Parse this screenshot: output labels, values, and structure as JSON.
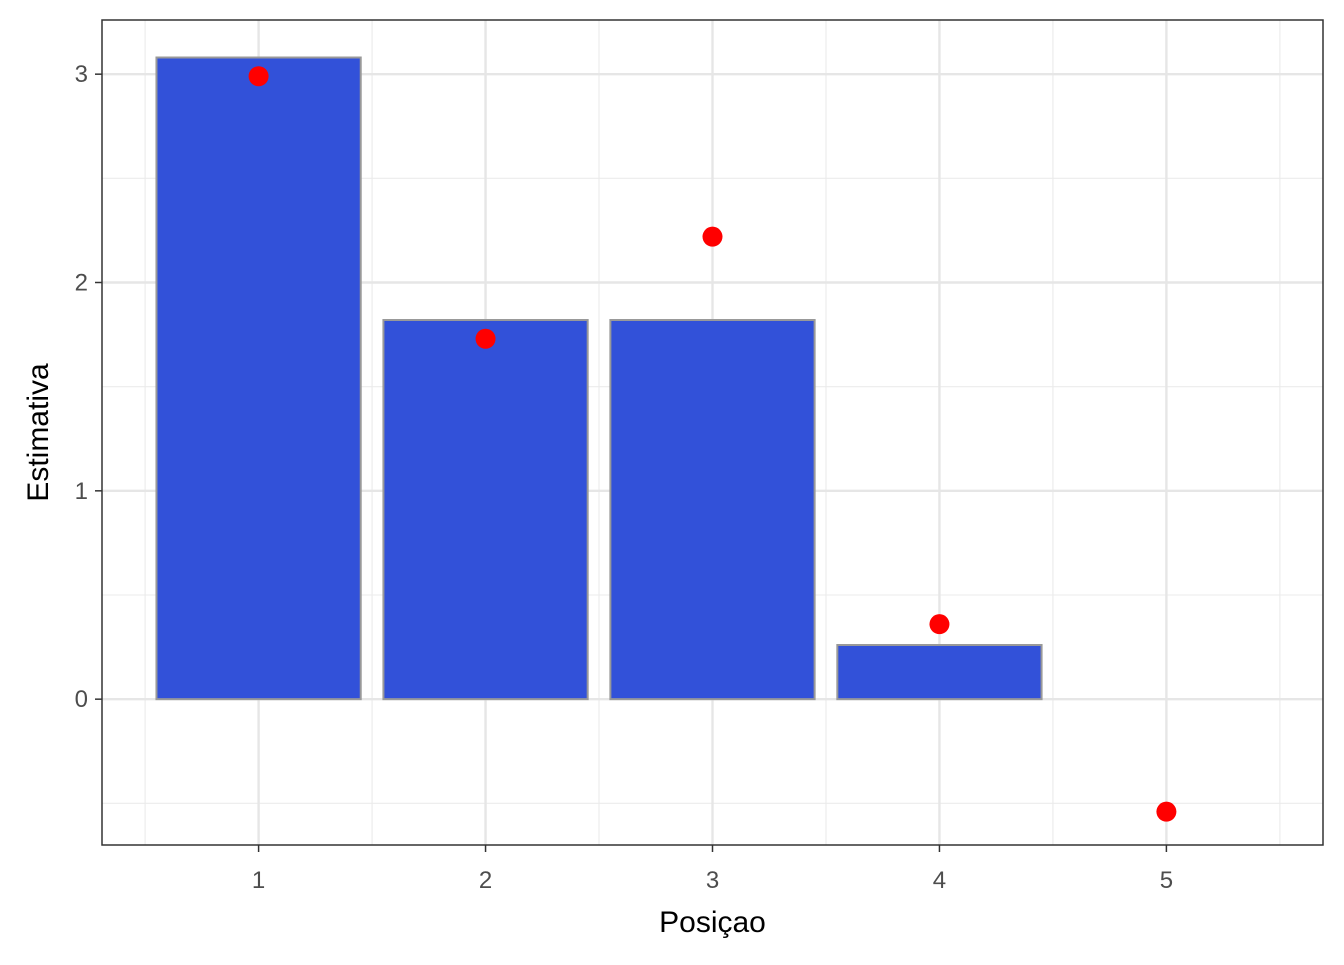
{
  "chart_data": {
    "type": "bar",
    "xlabel": "Posiçao",
    "ylabel": "Estimativa",
    "categories": [
      "1",
      "2",
      "3",
      "4",
      "5"
    ],
    "x": [
      1,
      2,
      3,
      4,
      5
    ],
    "series": [
      {
        "type": "bar",
        "values": [
          3.08,
          1.82,
          1.82,
          0.26,
          0.0
        ],
        "color": "#3251d9",
        "outline": "#999999"
      },
      {
        "type": "scatter",
        "values": [
          2.99,
          1.73,
          2.22,
          0.36,
          -0.54
        ],
        "color": "#ff0000"
      }
    ],
    "ylim": [
      -0.7,
      3.26
    ],
    "xlim": [
      0.31,
      5.69
    ],
    "yticks": [
      0,
      1,
      2,
      3
    ],
    "ytick_labels": [
      "0",
      "1",
      "2",
      "3"
    ],
    "grid": true,
    "theme": "bw"
  }
}
